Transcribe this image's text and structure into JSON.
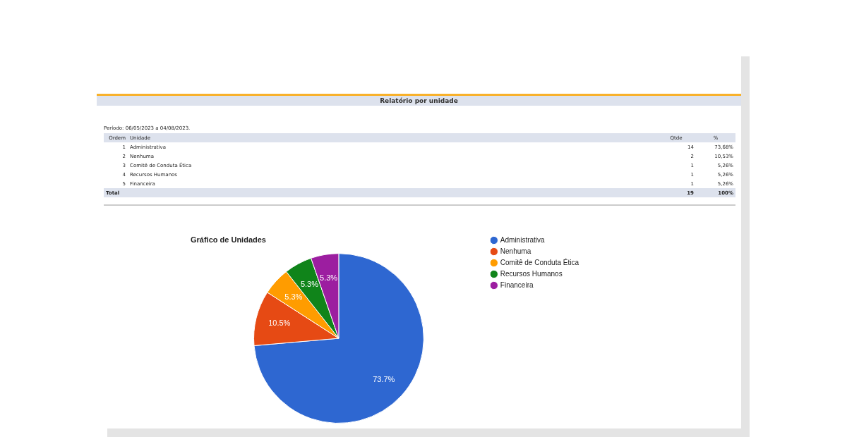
{
  "chart_data": {
    "type": "pie",
    "title": "Gráfico de Unidades",
    "subtitle": "Relatório por unidade",
    "categories": [
      "Administrativa",
      "Nenhuma",
      "Comitê de Conduta Ética",
      "Recursos Humanos",
      "Financeira"
    ],
    "values": [
      73.7,
      10.5,
      5.3,
      5.3,
      5.3
    ],
    "colors": [
      "#2e67d1",
      "#e64a14",
      "#ff9c00",
      "#10841a",
      "#9c1ea0"
    ],
    "value_labels": [
      "73.7%",
      "10.5%",
      "5.3%",
      "5.3%",
      "5.3%"
    ],
    "legend": "right",
    "annotations": [
      "Período: 06/05/2023 a 04/08/2023.",
      "Ordem",
      "Unidade",
      "Qtde",
      "%",
      "1",
      "Administrativa",
      "14",
      "73,68%",
      "2",
      "Nenhuma",
      "2",
      "10,53%",
      "3",
      "Comitê de Conduta Ética",
      "1",
      "5,26%",
      "4",
      "Recursos Humanos",
      "1",
      "5,26%",
      "5",
      "Financeira",
      "1",
      "5,26%",
      "Total",
      "19",
      "100%"
    ]
  }
}
